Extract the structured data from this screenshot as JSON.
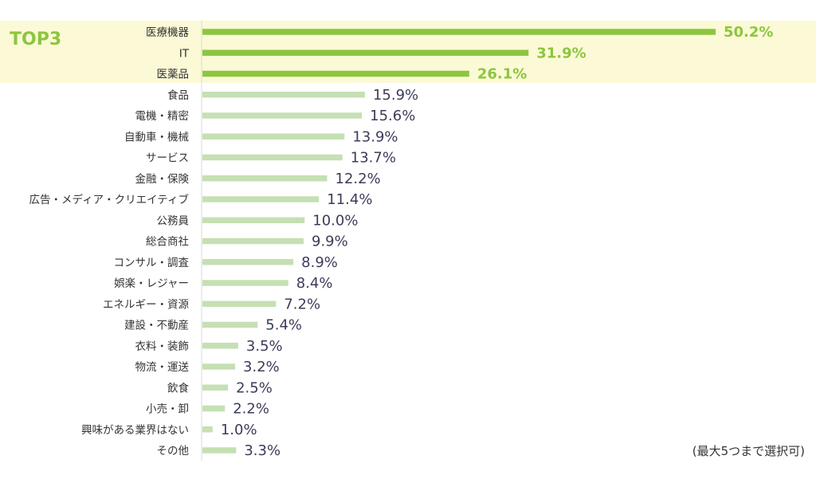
{
  "chart_data": {
    "type": "bar",
    "orientation": "horizontal",
    "categories": [
      "医療機器",
      "IT",
      "医薬品",
      "食品",
      "電機・精密",
      "自動車・機械",
      "サービス",
      "金融・保険",
      "広告・メディア・クリエイティブ",
      "公務員",
      "総合商社",
      "コンサル・調査",
      "娯楽・レジャー",
      "エネルギー・資源",
      "建設・不動産",
      "衣料・装飾",
      "物流・運送",
      "飲食",
      "小売・卸",
      "興味がある業界はない",
      "その他"
    ],
    "values": [
      50.2,
      31.9,
      26.1,
      15.9,
      15.6,
      13.9,
      13.7,
      12.2,
      11.4,
      10.0,
      9.9,
      8.9,
      8.4,
      7.2,
      5.4,
      3.5,
      3.2,
      2.5,
      2.2,
      1.0,
      3.3
    ],
    "value_labels": [
      "50.2%",
      "31.9%",
      "26.1%",
      "15.9%",
      "15.6%",
      "13.9%",
      "13.7%",
      "12.2%",
      "11.4%",
      "10.0%",
      "9.9%",
      "8.9%",
      "8.4%",
      "7.2%",
      "5.4%",
      "3.5%",
      "3.2%",
      "2.5%",
      "2.2%",
      "1.0%",
      "3.3%"
    ],
    "highlight_count": 3,
    "highlight_label": "TOP3",
    "xlim": [
      0,
      56
    ],
    "grid": false,
    "legend": "none",
    "note": "(最大5つまで選択可)",
    "colors": {
      "top_bar": "#8cc63f",
      "bar": "#c5e0b4",
      "top_band": "#fbf9d6",
      "top_text": "#8cc63f",
      "value_text": "#3c3c5a",
      "axis": "#d9d9d9"
    }
  }
}
